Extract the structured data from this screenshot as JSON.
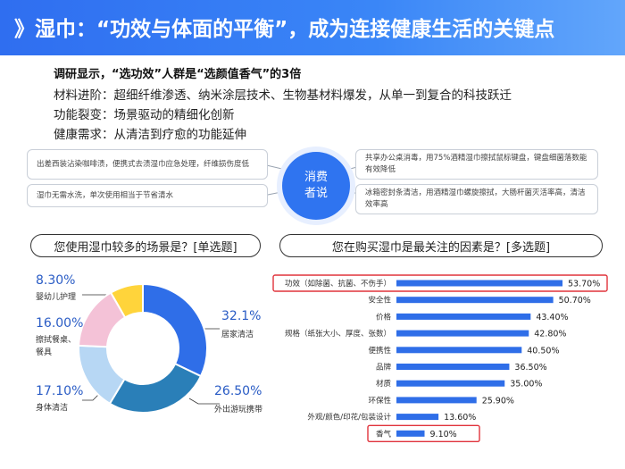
{
  "header": {
    "title": "》湿巾：“功效与体面的平衡”，成为连接健康生活的关键点"
  },
  "findings": {
    "headline": "调研显示，“选功效”人群是“选颜值香气”的3倍",
    "items": [
      "材料进阶：超细纤维渗透、纳米涂层技术、生物基材料爆发，从单一到复合的科技跃迁",
      "功能裂变：场景驱动的精细化创新",
      "健康需求：从清洁到疗愈的功能延伸"
    ]
  },
  "consumer_voice": {
    "center_label_line1": "消费",
    "center_label_line2": "者说",
    "quotes": [
      "出差西装沾染咖啡渍，便携式去渍湿巾应急处理，纤维损伤度低",
      "湿巾无需水洗，单次使用相当于节省清水",
      "共享办公桌消毒，用75%酒精湿巾擦拭鼠标键盘，键盘细菌落数能有效降低",
      "冰箱密封条清洁，用酒精湿巾螺旋擦拭，大肠杆菌灭活率高，清洁效率高"
    ]
  },
  "colors": {
    "accent": "#2f6ef0",
    "bar": "#2f6ee8",
    "highlight": "#e0333c",
    "pie_home": "#2f6ee8",
    "pie_outdoor": "#2a7fb8",
    "pie_body": "#b7d7f4",
    "pie_wipe": "#f4c2d7",
    "pie_baby": "#ffd43b"
  },
  "chart_data": [
    {
      "type": "pie",
      "title": "您使用湿巾较多的场景是？[单选题]",
      "categories": [
        "居家清洁",
        "外出游玩携带",
        "身体清洁",
        "擦拭餐桌、餐具",
        "婴幼儿护理"
      ],
      "values": [
        32.1,
        26.5,
        17.1,
        16.0,
        8.3
      ],
      "value_labels": [
        "32.1%",
        "26.50%",
        "17.10%",
        "16.00%",
        "8.30%"
      ],
      "legend_wipe_line1": "擦拭餐桌、",
      "legend_wipe_line2": "餐具"
    },
    {
      "type": "bar",
      "orientation": "horizontal",
      "title": "您在购买湿巾是最关注的因素是？[多选题]",
      "categories": [
        "功效（如除菌、抗菌、不伤手）",
        "安全性",
        "价格",
        "规格（纸张大小、厚度、张数）",
        "便携性",
        "品牌",
        "材质",
        "环保性",
        "外观/颜色/印花/包装设计",
        "香气"
      ],
      "values": [
        53.7,
        50.7,
        43.4,
        42.8,
        40.5,
        36.5,
        35.0,
        25.9,
        13.6,
        9.1
      ],
      "value_labels": [
        "53.70%",
        "50.70%",
        "43.40%",
        "42.80%",
        "40.50%",
        "36.50%",
        "35.00%",
        "25.90%",
        "13.60%",
        "9.10%"
      ],
      "highlighted": [
        "功效（如除菌、抗菌、不伤手）",
        "香气"
      ],
      "xlim": [
        0,
        60
      ]
    }
  ]
}
